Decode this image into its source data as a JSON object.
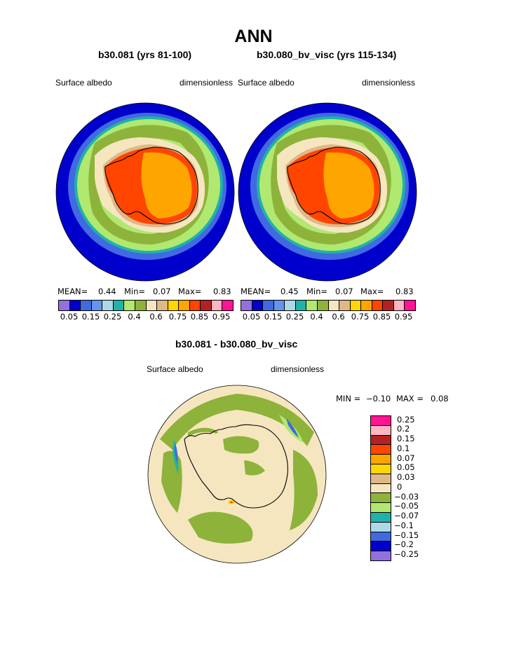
{
  "title": "ANN",
  "panels": [
    {
      "title": "b30.081 (yrs 81-100)",
      "variable": "Surface albedo",
      "units": "dimensionless",
      "mean_label": "MEAN=",
      "mean": "0.44",
      "min_label": "Min=",
      "min": "0.07",
      "max_label": "Max=",
      "max": "0.83"
    },
    {
      "title": "b30.080_bv_visc (yrs 115-134)",
      "variable": "Surface albedo",
      "units": "dimensionless",
      "mean_label": "MEAN=",
      "mean": "0.45",
      "min_label": "Min=",
      "min": "0.07",
      "max_label": "Max=",
      "max": "0.83"
    }
  ],
  "colorbar": {
    "colors": [
      "#9370db",
      "#0000cd",
      "#4169e1",
      "#6495ed",
      "#add8e6",
      "#20b2aa",
      "#b0e870",
      "#8db33a",
      "#f5e6c0",
      "#deb887",
      "#ffd700",
      "#ffa500",
      "#ff4500",
      "#b22222",
      "#ffb6c1",
      "#ff1493"
    ],
    "ticks": [
      "0.05",
      "0.15",
      "0.25",
      "0.4",
      "0.6",
      "0.75",
      "0.85",
      "0.95"
    ]
  },
  "diff": {
    "title": "b30.081 - b30.080_bv_visc",
    "variable": "Surface albedo",
    "units": "dimensionless",
    "min_label": "MIN =",
    "min": "−0.10",
    "max_label": "MAX =",
    "max": "0.08",
    "colors": [
      "#ff1493",
      "#ffb6c1",
      "#b22222",
      "#ff4500",
      "#ffa500",
      "#ffd700",
      "#deb887",
      "#f5e6c0",
      "#8db33a",
      "#b0e870",
      "#20b2aa",
      "#add8e6",
      "#4169e1",
      "#0000cd",
      "#9370db"
    ],
    "ticks": [
      "0.25",
      "0.2",
      "0.15",
      "0.1",
      "0.07",
      "0.05",
      "0.03",
      "0",
      "−0.03",
      "−0.05",
      "−0.07",
      "−0.1",
      "−0.15",
      "−0.2",
      "−0.25"
    ]
  }
}
